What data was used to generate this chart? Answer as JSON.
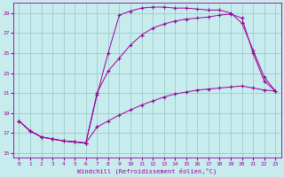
{
  "xlabel": "Windchill (Refroidissement éolien,°C)",
  "bg_color": "#c8ecee",
  "grid_color": "#99cccc",
  "line_color": "#990099",
  "xlim": [
    -0.5,
    23.5
  ],
  "ylim": [
    14.5,
    30.0
  ],
  "xticks": [
    0,
    1,
    2,
    3,
    4,
    5,
    6,
    7,
    8,
    9,
    10,
    11,
    12,
    13,
    14,
    15,
    16,
    17,
    18,
    19,
    20,
    21,
    22,
    23
  ],
  "yticks": [
    15,
    17,
    19,
    21,
    23,
    25,
    27,
    29
  ],
  "series1_x": [
    0,
    1,
    2,
    3,
    4,
    5,
    6,
    7,
    8,
    9,
    10,
    11,
    12,
    13,
    14,
    15,
    16,
    17,
    18,
    19,
    20,
    21,
    22,
    23
  ],
  "series1_y": [
    18.2,
    17.2,
    16.6,
    16.4,
    16.2,
    16.1,
    16.0,
    17.6,
    18.2,
    18.8,
    19.3,
    19.8,
    20.2,
    20.6,
    20.9,
    21.1,
    21.3,
    21.4,
    21.5,
    21.6,
    21.7,
    21.5,
    21.3,
    21.2
  ],
  "series2_x": [
    0,
    1,
    2,
    3,
    4,
    5,
    6,
    7,
    8,
    9,
    10,
    11,
    12,
    13,
    14,
    15,
    16,
    17,
    18,
    19,
    20,
    21,
    22,
    23
  ],
  "series2_y": [
    18.2,
    17.2,
    16.6,
    16.4,
    16.2,
    16.1,
    16.0,
    20.8,
    25.0,
    28.8,
    29.2,
    29.5,
    29.6,
    29.6,
    29.5,
    29.5,
    29.4,
    29.3,
    29.3,
    29.0,
    28.0,
    25.3,
    22.6,
    21.2
  ],
  "series3_x": [
    0,
    1,
    2,
    3,
    4,
    5,
    6,
    7,
    8,
    9,
    10,
    11,
    12,
    13,
    14,
    15,
    16,
    17,
    18,
    19,
    20,
    21,
    22,
    23
  ],
  "series3_y": [
    18.2,
    17.2,
    16.6,
    16.4,
    16.2,
    16.1,
    16.0,
    21.0,
    23.2,
    24.5,
    25.8,
    26.8,
    27.5,
    27.9,
    28.2,
    28.4,
    28.5,
    28.6,
    28.8,
    28.9,
    28.5,
    25.0,
    22.2,
    21.2
  ]
}
